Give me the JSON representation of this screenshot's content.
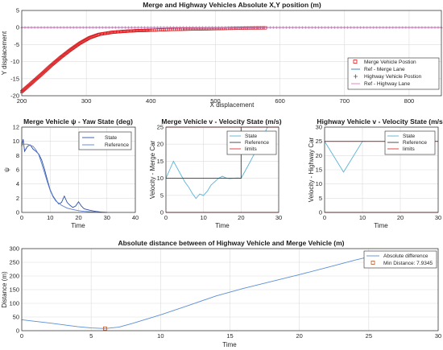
{
  "chart_data": [
    {
      "id": "p1",
      "type": "scatter",
      "title": "Merge and Highway Vehicles Absolute X,Y position (m)",
      "xlabel": "X displacement",
      "ylabel": "Y displacement",
      "xlim": [
        200,
        850
      ],
      "ylim": [
        -20,
        5
      ],
      "xticks": [
        200,
        300,
        400,
        500,
        600,
        700,
        800
      ],
      "yticks": [
        -20,
        -15,
        -10,
        -5,
        0,
        5
      ],
      "ytick_labels": [
        "-20",
        "-15",
        "-10",
        "-5",
        "0",
        "5"
      ],
      "legend": {
        "position": "right",
        "entries": [
          "Merge Vehicle Postion",
          "Ref - Merge Lane",
          "Highway Vehicle Postion",
          "Ref - Highway Lane"
        ]
      },
      "series": [
        {
          "name": "Merge Vehicle Postion",
          "marker": "square",
          "color": "#d7191c",
          "x": [
            200,
            215,
            230,
            245,
            260,
            275,
            290,
            305,
            320,
            340,
            360,
            380,
            400,
            425,
            450,
            480,
            510,
            545,
            580
          ],
          "y": [
            -18.8,
            -16.3,
            -13.8,
            -11.2,
            -8.8,
            -6.6,
            -4.6,
            -3.0,
            -2.0,
            -1.4,
            -1.1,
            -0.9,
            -0.8,
            -0.6,
            -0.5,
            -0.4,
            -0.3,
            -0.15,
            -0.1
          ]
        },
        {
          "name": "Ref - Merge Lane",
          "marker": "line",
          "color": "#2c7bb6",
          "x": [
            200,
            850
          ],
          "y": [
            0,
            0
          ]
        },
        {
          "name": "Highway Vehicle Postion",
          "marker": "plus",
          "color": "#555555",
          "x": [
            200,
            850
          ],
          "y": [
            0,
            0
          ]
        },
        {
          "name": "Ref - Highway Lane",
          "marker": "line",
          "color": "#e377c2",
          "x": [
            200,
            850
          ],
          "y": [
            0,
            0
          ]
        }
      ]
    },
    {
      "id": "p2",
      "type": "line",
      "title": "Merge Vehicle ψ - Yaw State (deg)",
      "xlabel": "Time",
      "ylabel": "ψ",
      "xlim": [
        0,
        40
      ],
      "ylim": [
        0,
        12
      ],
      "xticks": [
        0,
        10,
        20,
        30,
        40
      ],
      "yticks": [
        0,
        2,
        4,
        6,
        8,
        10,
        12
      ],
      "legend": {
        "position": "top-right",
        "entries": [
          "State",
          "Reference"
        ]
      },
      "series": [
        {
          "name": "State",
          "color": "#2e4fa3",
          "x": [
            0,
            0.5,
            1,
            2,
            3,
            4,
            5,
            6,
            7,
            8,
            9,
            10,
            11,
            12,
            13,
            14,
            15,
            16,
            17,
            18,
            19,
            20,
            21,
            22,
            24,
            26,
            28,
            30
          ],
          "y": [
            9.3,
            10.3,
            8.6,
            9.3,
            9.5,
            8.9,
            8.6,
            8.2,
            7.4,
            6.1,
            4.6,
            3.2,
            2.3,
            1.7,
            1.2,
            1.4,
            2.3,
            1.4,
            1.0,
            0.7,
            0.9,
            1.5,
            0.9,
            0.5,
            0.3,
            0.15,
            0.05,
            0.0
          ]
        },
        {
          "name": "Reference",
          "color": "#5a7fd0",
          "x": [
            0,
            2,
            4,
            5,
            6,
            7,
            8,
            9,
            10,
            11,
            12,
            14,
            16,
            18,
            20,
            22,
            24,
            26,
            28,
            30
          ],
          "y": [
            9.6,
            9.6,
            9.3,
            8.8,
            8.1,
            6.9,
            5.6,
            4.3,
            3.1,
            2.2,
            1.6,
            1.0,
            0.6,
            0.4,
            0.25,
            0.15,
            0.1,
            0.05,
            0.02,
            0.0
          ]
        }
      ]
    },
    {
      "id": "p3",
      "type": "line",
      "title": "Merge Vehicle v - Velocity State (m/s)",
      "xlabel": "Time",
      "ylabel": "Velocity - Merge Car",
      "xlim": [
        0,
        30
      ],
      "ylim": [
        0,
        25
      ],
      "xticks": [
        0,
        10,
        20,
        30
      ],
      "yticks": [
        0,
        5,
        10,
        15,
        20,
        25
      ],
      "legend": {
        "position": "top-right",
        "entries": [
          "State",
          "Reference",
          "limits"
        ]
      },
      "series": [
        {
          "name": "State",
          "color": "#5ab4d6",
          "x": [
            0,
            1,
            2,
            3,
            4,
            5,
            6,
            7,
            8,
            9,
            10,
            11,
            12,
            13,
            14,
            15,
            16,
            17,
            18,
            19,
            20,
            22,
            24,
            26,
            27
          ],
          "y": [
            10,
            12.5,
            15,
            13,
            11,
            9,
            7.5,
            5.6,
            4.1,
            5.4,
            5.0,
            6.2,
            8.0,
            9.0,
            10.0,
            10.6,
            10.1,
            9.9,
            10.0,
            10.1,
            10.0,
            14.0,
            18.2,
            22.5,
            25.0
          ]
        },
        {
          "name": "Reference",
          "color": "#3d3d3d",
          "x": [
            0,
            20,
            20,
            27
          ],
          "y": [
            10,
            10,
            25,
            25
          ]
        },
        {
          "name": "limits",
          "color": "#e0312f",
          "x": [
            0,
            30
          ],
          "y": [
            25,
            25
          ]
        },
        {
          "name": "limits",
          "color": "#e0312f",
          "x": [
            0,
            30
          ],
          "y": [
            0,
            0
          ]
        }
      ]
    },
    {
      "id": "p4",
      "type": "line",
      "title": "Highway Vehicle v - Velocity State (m/s)",
      "xlabel": "Time",
      "ylabel": "Velocity - Highway Car",
      "xlim": [
        0,
        30
      ],
      "ylim": [
        0,
        30
      ],
      "xticks": [
        0,
        10,
        20,
        30
      ],
      "yticks": [
        0,
        5,
        10,
        15,
        20,
        25,
        30
      ],
      "legend": {
        "position": "top-right",
        "entries": [
          "State",
          "Reference",
          "limits"
        ]
      },
      "series": [
        {
          "name": "State",
          "color": "#5ab4d6",
          "x": [
            0,
            5,
            10,
            11
          ],
          "y": [
            25,
            14.2,
            25,
            25
          ]
        },
        {
          "name": "Reference",
          "color": "#3d3d3d",
          "x": [
            0,
            30
          ],
          "y": [
            25,
            25
          ]
        },
        {
          "name": "limits",
          "color": "#e0312f",
          "x": [
            0,
            30
          ],
          "y": [
            25,
            25
          ]
        },
        {
          "name": "limits",
          "color": "#e0312f",
          "x": [
            0,
            30
          ],
          "y": [
            0,
            0
          ]
        }
      ]
    },
    {
      "id": "p5",
      "type": "line",
      "title": "Absolute distance between of Highway Vehicle and Merge Vehicle (m)",
      "xlabel": "Time",
      "ylabel": "Distance (m)",
      "xlim": [
        0,
        30
      ],
      "ylim": [
        0,
        300
      ],
      "xticks": [
        0,
        5,
        10,
        15,
        20,
        25,
        30
      ],
      "yticks": [
        0,
        50,
        100,
        150,
        200,
        250,
        300
      ],
      "legend": {
        "position": "top-right",
        "entries": [
          "Absolute difference",
          "Min Distance: 7.9345"
        ]
      },
      "series": [
        {
          "name": "Absolute difference",
          "color": "#5b8fd6",
          "x": [
            0,
            2,
            4,
            5,
            6,
            7,
            8,
            10,
            12,
            14,
            16,
            18,
            20,
            22,
            24,
            25,
            26,
            27
          ],
          "y": [
            40,
            28,
            15,
            10,
            8,
            13,
            27,
            58,
            92,
            127,
            155,
            180,
            205,
            231,
            258,
            270,
            275,
            277
          ]
        },
        {
          "name": "Min Distance: 7.9345",
          "color": "#b15a2c",
          "marker": "square",
          "x": [
            6
          ],
          "y": [
            7.9345
          ]
        }
      ]
    }
  ]
}
